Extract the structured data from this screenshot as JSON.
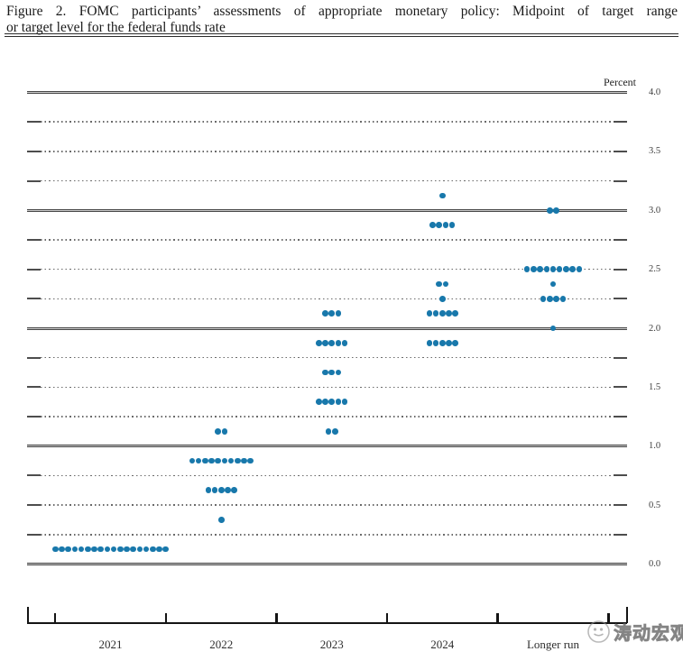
{
  "figure": {
    "title_line1": "Figure 2.  FOMC participants’ assessments of appropriate monetary policy:  Midpoint of target range",
    "title_line2": "or target level for the federal funds rate"
  },
  "chart_data": {
    "type": "scatter",
    "title": "FOMC participants’ assessments of appropriate monetary policy: Midpoint of target range or target level for the federal funds rate",
    "ylabel": "Percent",
    "ylim": [
      0.0,
      4.0
    ],
    "y_gridline_step": 0.25,
    "y_tick_labels": [
      "4.0",
      "3.5",
      "3.0",
      "2.5",
      "2.0",
      "1.5",
      "1.0",
      "0.5",
      "0.0"
    ],
    "grid": "dotted quarter-point lines, solid lines at whole percents",
    "categories": [
      "2021",
      "2022",
      "2023",
      "2024",
      "Longer run"
    ],
    "dot_color": "#1878ab",
    "series": [
      {
        "category": "2021",
        "dots": [
          {
            "rate": 0.125,
            "count": 18
          }
        ]
      },
      {
        "category": "2022",
        "dots": [
          {
            "rate": 1.125,
            "count": 2
          },
          {
            "rate": 0.875,
            "count": 10
          },
          {
            "rate": 0.625,
            "count": 5
          },
          {
            "rate": 0.375,
            "count": 1
          }
        ]
      },
      {
        "category": "2023",
        "dots": [
          {
            "rate": 2.125,
            "count": 3
          },
          {
            "rate": 1.875,
            "count": 5
          },
          {
            "rate": 1.625,
            "count": 3
          },
          {
            "rate": 1.375,
            "count": 5
          },
          {
            "rate": 1.125,
            "count": 2
          }
        ]
      },
      {
        "category": "2024",
        "dots": [
          {
            "rate": 3.125,
            "count": 1
          },
          {
            "rate": 2.875,
            "count": 4
          },
          {
            "rate": 2.375,
            "count": 2
          },
          {
            "rate": 2.25,
            "count": 1
          },
          {
            "rate": 2.125,
            "count": 5
          },
          {
            "rate": 1.875,
            "count": 5
          }
        ]
      },
      {
        "category": "Longer run",
        "dots": [
          {
            "rate": 3.0,
            "count": 2
          },
          {
            "rate": 2.5,
            "count": 9
          },
          {
            "rate": 2.375,
            "count": 1
          },
          {
            "rate": 2.25,
            "count": 4
          },
          {
            "rate": 2.0,
            "count": 1
          }
        ]
      }
    ]
  },
  "watermark": {
    "text": "涛动宏观"
  }
}
